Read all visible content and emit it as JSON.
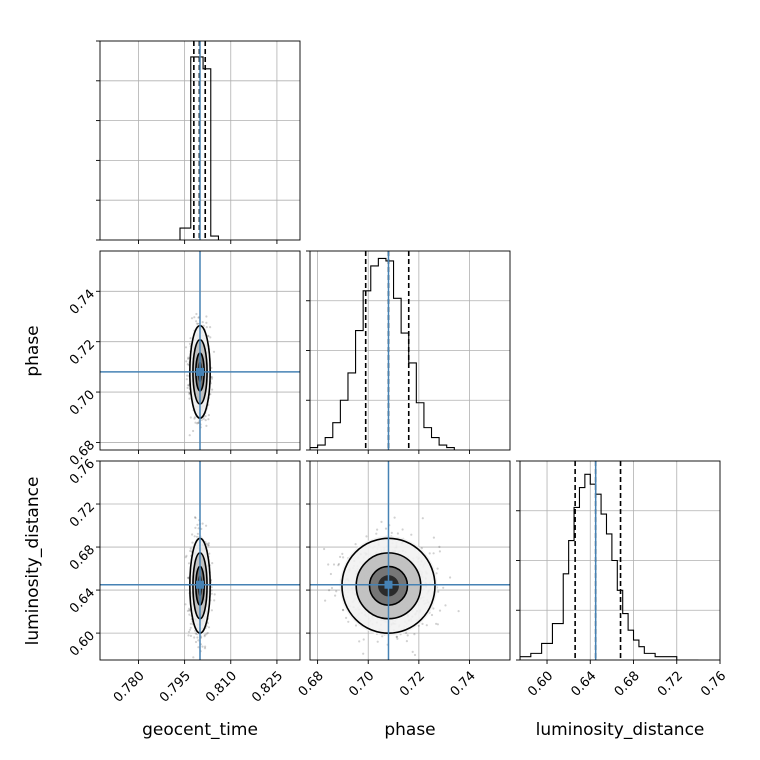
{
  "chart_data": {
    "type": "corner",
    "parameters": [
      "geocent_time",
      "phase",
      "luminosity_distance"
    ],
    "axis_labels": {
      "x": [
        "geocent_time",
        "phase",
        "luminosity_distance"
      ],
      "y": [
        "",
        "phase",
        "luminosity_distance"
      ]
    },
    "truths": [
      0.8,
      0.708,
      0.645
    ],
    "truth_color": "#4682b4",
    "ranges": [
      [
        0.7675,
        0.8325
      ],
      [
        0.677,
        0.756
      ],
      [
        0.575,
        0.76
      ]
    ],
    "ticks": {
      "geocent_time": {
        "values": [
          0.78,
          0.795,
          0.81,
          0.825
        ],
        "labels": [
          "0.780",
          "0.795",
          "0.810",
          "0.825"
        ]
      },
      "phase": {
        "values": [
          0.68,
          0.7,
          0.72,
          0.74
        ],
        "labels": [
          "0.68",
          "0.70",
          "0.72",
          "0.74"
        ]
      },
      "luminosity_distance": {
        "values": [
          0.6,
          0.64,
          0.68,
          0.72,
          0.76
        ],
        "labels": [
          "0.60",
          "0.64",
          "0.68",
          "0.72",
          "0.76"
        ]
      }
    },
    "histograms": [
      {
        "parameter": "geocent_time",
        "bin_edges": [
          0.7935,
          0.797,
          0.799,
          0.801,
          0.8035,
          0.806
        ],
        "counts": [
          3,
          46,
          46,
          43,
          1
        ],
        "quantiles": [
          0.798,
          0.7998,
          0.8017
        ],
        "ymax": 50
      },
      {
        "parameter": "phase",
        "bin_edges": [
          0.677,
          0.68,
          0.683,
          0.686,
          0.689,
          0.692,
          0.695,
          0.698,
          0.701,
          0.704,
          0.707,
          0.71,
          0.713,
          0.716,
          0.719,
          0.722,
          0.725,
          0.728,
          0.731,
          0.734
        ],
        "counts": [
          1,
          2,
          5,
          11,
          20,
          31,
          48,
          64,
          74,
          77,
          76,
          61,
          47,
          35,
          19,
          9,
          5,
          2,
          1
        ],
        "quantiles": [
          0.699,
          0.708,
          0.716
        ],
        "ymax": 80
      },
      {
        "parameter": "luminosity_distance",
        "bin_edges": [
          0.575,
          0.585,
          0.595,
          0.605,
          0.615,
          0.62,
          0.625,
          0.63,
          0.635,
          0.64,
          0.645,
          0.65,
          0.655,
          0.66,
          0.665,
          0.67,
          0.675,
          0.68,
          0.685,
          0.69,
          0.7,
          0.71,
          0.72,
          0.74
        ],
        "counts": [
          1,
          2,
          5,
          11,
          26,
          36,
          46,
          52,
          56,
          53,
          50,
          44,
          38,
          30,
          21,
          14,
          9,
          6,
          4,
          2,
          1,
          1,
          0
        ],
        "quantiles": [
          0.626,
          0.645,
          0.668
        ],
        "ymax": 60
      }
    ],
    "contours_2d": [
      {
        "x": "geocent_time",
        "y": "phase",
        "center": [
          0.8,
          0.708
        ],
        "sigma": [
          0.00135,
          0.0075
        ],
        "levels": [
          1.0,
          1.7,
          2.45
        ]
      },
      {
        "x": "geocent_time",
        "y": "luminosity_distance",
        "center": [
          0.8,
          0.644
        ],
        "sigma": [
          0.00135,
          0.018
        ],
        "levels": [
          1.0,
          1.7,
          2.45
        ]
      },
      {
        "x": "phase",
        "y": "luminosity_distance",
        "center": [
          0.708,
          0.644
        ],
        "sigma": [
          0.0075,
          0.018
        ],
        "levels": [
          1.0,
          1.7,
          2.45
        ]
      }
    ],
    "grid": true,
    "samples_shown": true
  }
}
